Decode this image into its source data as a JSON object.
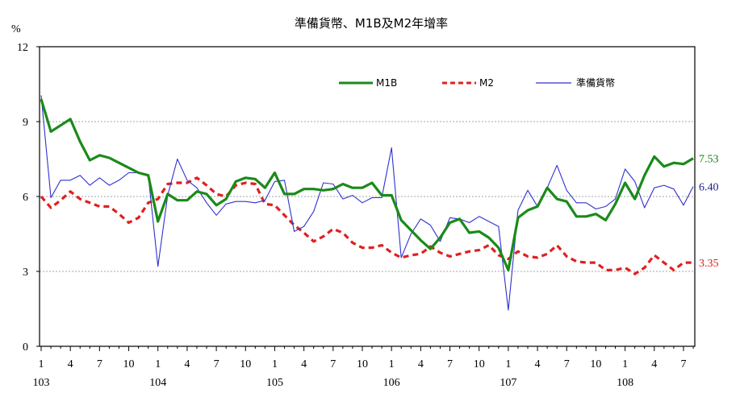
{
  "chart_data": {
    "type": "line",
    "title": "準備貨幣、M1B及M2年增率",
    "ylabel": "%",
    "ylim": [
      0,
      12
    ],
    "yticks": [
      "0",
      "3",
      "6",
      "9",
      "12"
    ],
    "gridlines_at": [
      3,
      6,
      9
    ],
    "x_tick_labels": [
      "1",
      "4",
      "7",
      "10",
      "1",
      "4",
      "7",
      "10",
      "1",
      "4",
      "7",
      "10",
      "1",
      "4",
      "7",
      "10",
      "1",
      "4",
      "7",
      "10",
      "1",
      "4",
      "7"
    ],
    "year_labels": [
      "103",
      "104",
      "105",
      "106",
      "107",
      "108"
    ],
    "legend_position": "top-center",
    "series": [
      {
        "name": "M1B",
        "color": "#1a8a1a",
        "end_label": "7.53",
        "values": [
          9.9,
          8.6,
          8.85,
          9.1,
          8.2,
          7.45,
          7.65,
          7.55,
          7.35,
          7.15,
          6.95,
          6.85,
          5.0,
          6.1,
          5.85,
          5.85,
          6.2,
          6.1,
          5.65,
          5.9,
          6.6,
          6.75,
          6.7,
          6.35,
          6.95,
          6.1,
          6.1,
          6.3,
          6.3,
          6.25,
          6.3,
          6.5,
          6.35,
          6.35,
          6.55,
          6.05,
          6.05,
          5.05,
          4.65,
          4.25,
          3.9,
          4.35,
          4.95,
          5.1,
          4.55,
          4.6,
          4.35,
          3.95,
          3.05,
          5.15,
          5.45,
          5.6,
          6.35,
          5.9,
          5.8,
          5.2,
          5.2,
          5.3,
          5.05,
          5.7,
          6.55,
          5.9,
          6.85,
          7.6,
          7.2,
          7.35,
          7.3,
          7.53
        ]
      },
      {
        "name": "M2",
        "color": "#e02020",
        "end_label": "3.35",
        "values": [
          6.0,
          5.55,
          5.85,
          6.2,
          5.9,
          5.75,
          5.6,
          5.6,
          5.3,
          4.95,
          5.15,
          5.75,
          5.9,
          6.5,
          6.55,
          6.55,
          6.75,
          6.45,
          6.1,
          6.0,
          6.45,
          6.55,
          6.5,
          5.7,
          5.65,
          5.25,
          4.85,
          4.55,
          4.2,
          4.4,
          4.7,
          4.55,
          4.15,
          3.95,
          3.95,
          4.05,
          3.75,
          3.55,
          3.65,
          3.7,
          4.0,
          3.75,
          3.6,
          3.7,
          3.8,
          3.85,
          4.05,
          3.65,
          3.5,
          3.8,
          3.6,
          3.55,
          3.7,
          4.05,
          3.6,
          3.4,
          3.35,
          3.35,
          3.05,
          3.05,
          3.15,
          2.9,
          3.15,
          3.65,
          3.35,
          3.05,
          3.35,
          3.35
        ]
      },
      {
        "name": "準備貨幣",
        "color": "#3030d0",
        "end_label": "6.40",
        "values": [
          10.05,
          5.95,
          6.65,
          6.65,
          6.85,
          6.45,
          6.75,
          6.45,
          6.65,
          6.95,
          6.95,
          6.85,
          3.2,
          6.05,
          7.5,
          6.65,
          6.35,
          5.75,
          5.25,
          5.7,
          5.8,
          5.8,
          5.75,
          5.85,
          6.6,
          6.65,
          4.6,
          4.8,
          5.4,
          6.55,
          6.5,
          5.9,
          6.05,
          5.75,
          5.95,
          5.95,
          7.95,
          3.55,
          4.5,
          5.1,
          4.85,
          4.2,
          5.15,
          5.1,
          4.95,
          5.2,
          5.0,
          4.8,
          1.45,
          5.45,
          6.25,
          5.6,
          6.35,
          7.25,
          6.25,
          5.75,
          5.75,
          5.5,
          5.6,
          5.9,
          7.1,
          6.6,
          5.55,
          6.35,
          6.45,
          6.3,
          5.65,
          6.4
        ]
      }
    ]
  }
}
